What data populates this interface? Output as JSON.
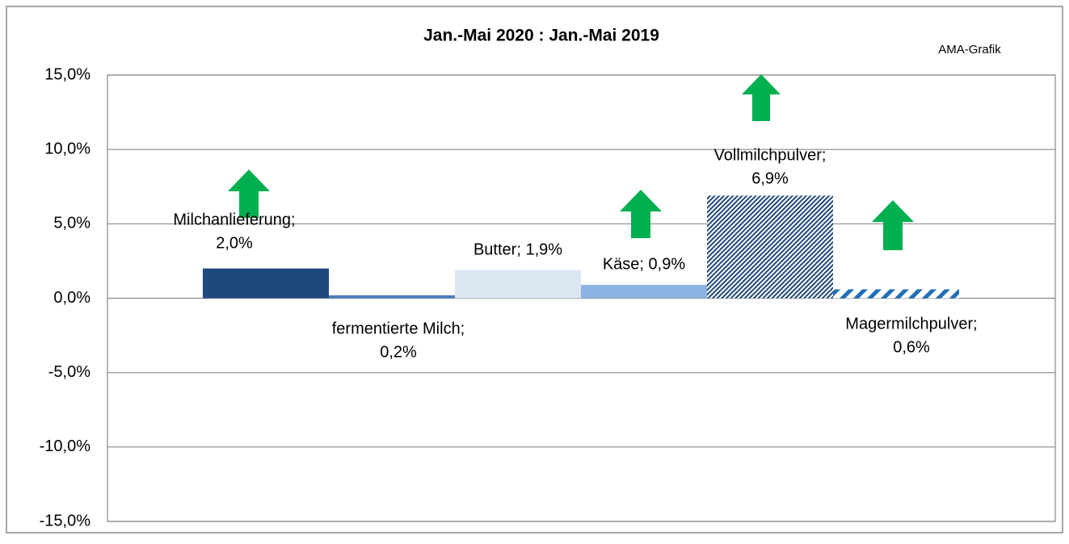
{
  "chart_data": {
    "type": "bar",
    "title": "Jan.-Mai 2020 : Jan.-Mai 2019",
    "source": "AMA-Grafik",
    "values": [
      2.0,
      0.2,
      1.9,
      0.9,
      6.9,
      0.6
    ],
    "value_labels": [
      [
        "Milchanlieferung;",
        "2,0%"
      ],
      [
        "fermentierte Milch;",
        "0,2%"
      ],
      [
        "Butter; 1,9%"
      ],
      [
        "Käse; 0,9%"
      ],
      [
        "Vollmilchpulver;",
        "6,9%"
      ],
      [
        "Magermilchpulver;",
        "0,6%"
      ]
    ],
    "colors": [
      "#1f497d",
      "#4a7ebb",
      "#dce6f2",
      "#8db3e2",
      "#1f497d",
      "#1f6fb5"
    ],
    "fills": [
      "solid",
      "solid",
      "solid",
      "solid",
      "dense-hatch",
      "wide-hatch"
    ],
    "ylim": [
      -15,
      15
    ],
    "yticks": [
      {
        "value": -15,
        "label": "-15,0%"
      },
      {
        "value": -10,
        "label": "-10,0%"
      },
      {
        "value": -5,
        "label": "-5,0%"
      },
      {
        "value": 0,
        "label": "0,0%"
      },
      {
        "value": 5,
        "label": "5,0%"
      },
      {
        "value": 10,
        "label": "10,0%"
      },
      {
        "value": 15,
        "label": "15,0%"
      }
    ],
    "grid": true
  }
}
